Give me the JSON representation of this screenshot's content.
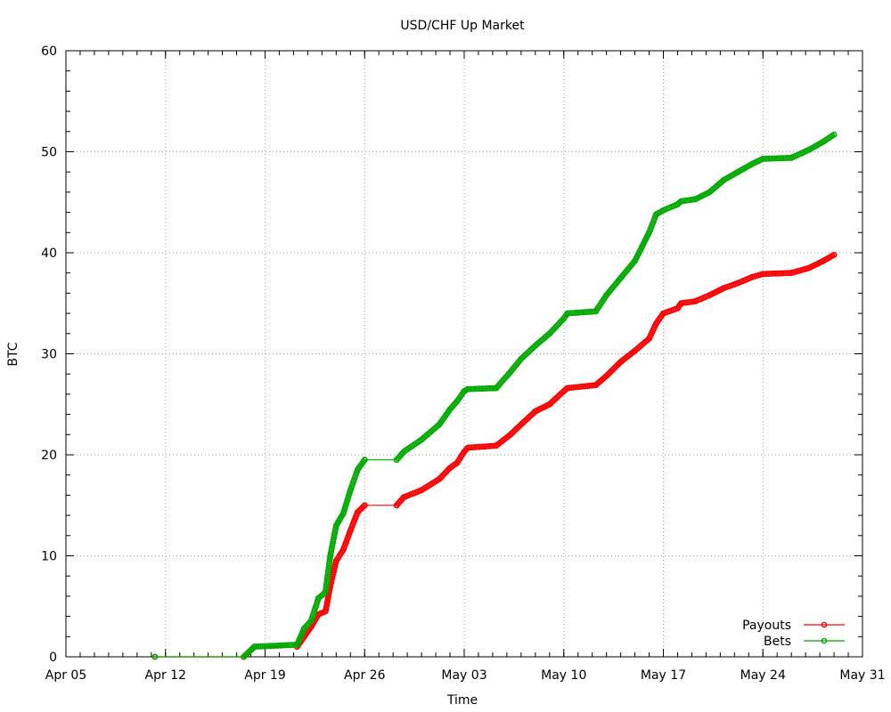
{
  "chart_data": {
    "type": "line",
    "title": "USD/CHF Up Market",
    "xlabel": "Time",
    "ylabel": "BTC",
    "x_axis": {
      "type": "date",
      "range": [
        "2014-04-05",
        "2014-05-31"
      ],
      "ticks": [
        {
          "date": "2014-04-05",
          "label": "Apr 05"
        },
        {
          "date": "2014-04-12",
          "label": "Apr 12"
        },
        {
          "date": "2014-04-19",
          "label": "Apr 19"
        },
        {
          "date": "2014-04-26",
          "label": "Apr 26"
        },
        {
          "date": "2014-05-03",
          "label": "May 03"
        },
        {
          "date": "2014-05-10",
          "label": "May 10"
        },
        {
          "date": "2014-05-17",
          "label": "May 17"
        },
        {
          "date": "2014-05-24",
          "label": "May 24"
        },
        {
          "date": "2014-05-31",
          "label": "May 31"
        }
      ]
    },
    "y_axis": {
      "range": [
        0,
        60
      ],
      "ticks": [
        0,
        10,
        20,
        30,
        40,
        50,
        60
      ]
    },
    "grid": true,
    "legend_position": "bottom-right",
    "series": [
      {
        "name": "Payouts",
        "color": "#ff0000",
        "points": [
          [
            "2014-04-11 06:00",
            0
          ],
          [
            "2014-04-17 12:00",
            0
          ],
          [
            "2014-04-18 06:00",
            1.0
          ],
          [
            "2014-04-21 06:00",
            1.0
          ],
          [
            "2014-04-21 18:00",
            2.0
          ],
          [
            "2014-04-22 06:00",
            3.0
          ],
          [
            "2014-04-22 18:00",
            4.2
          ],
          [
            "2014-04-23 06:00",
            4.5
          ],
          [
            "2014-04-23 14:00",
            7.0
          ],
          [
            "2014-04-24 00:00",
            9.5
          ],
          [
            "2014-04-24 12:00",
            10.6
          ],
          [
            "2014-04-25 00:00",
            12.5
          ],
          [
            "2014-04-25 12:00",
            14.3
          ],
          [
            "2014-04-26 00:00",
            15.0
          ],
          [
            "2014-04-28 06:00",
            15.0
          ],
          [
            "2014-04-28 18:00",
            15.8
          ],
          [
            "2014-04-30 00:00",
            16.5
          ],
          [
            "2014-05-01 06:00",
            17.6
          ],
          [
            "2014-05-02 00:00",
            18.7
          ],
          [
            "2014-05-02 12:00",
            19.2
          ],
          [
            "2014-05-03 00:00",
            20.3
          ],
          [
            "2014-05-03 06:00",
            20.7
          ],
          [
            "2014-05-05 06:00",
            20.9
          ],
          [
            "2014-05-06 06:00",
            22.0
          ],
          [
            "2014-05-07 00:00",
            23.0
          ],
          [
            "2014-05-08 00:00",
            24.3
          ],
          [
            "2014-05-09 00:00",
            25.0
          ],
          [
            "2014-05-10 00:00",
            26.3
          ],
          [
            "2014-05-10 06:00",
            26.6
          ],
          [
            "2014-05-12 06:00",
            26.9
          ],
          [
            "2014-05-13 00:00",
            27.8
          ],
          [
            "2014-05-14 00:00",
            29.2
          ],
          [
            "2014-05-15 00:00",
            30.3
          ],
          [
            "2014-05-16 00:00",
            31.5
          ],
          [
            "2014-05-16 12:00",
            33.0
          ],
          [
            "2014-05-17 00:00",
            34.0
          ],
          [
            "2014-05-18 00:00",
            34.5
          ],
          [
            "2014-05-18 06:00",
            35.0
          ],
          [
            "2014-05-19 06:00",
            35.2
          ],
          [
            "2014-05-20 06:00",
            35.8
          ],
          [
            "2014-05-21 06:00",
            36.5
          ],
          [
            "2014-05-22 06:00",
            37.0
          ],
          [
            "2014-05-23 06:00",
            37.6
          ],
          [
            "2014-05-24 00:00",
            37.9
          ],
          [
            "2014-05-26 00:00",
            38.0
          ],
          [
            "2014-05-27 06:00",
            38.5
          ],
          [
            "2014-05-28 06:00",
            39.2
          ],
          [
            "2014-05-29 00:00",
            39.8
          ]
        ]
      },
      {
        "name": "Bets",
        "color": "#00aa00",
        "points": [
          [
            "2014-04-11 06:00",
            0
          ],
          [
            "2014-04-17 12:00",
            0
          ],
          [
            "2014-04-18 06:00",
            1.0
          ],
          [
            "2014-04-21 06:00",
            1.2
          ],
          [
            "2014-04-21 18:00",
            2.8
          ],
          [
            "2014-04-22 06:00",
            3.6
          ],
          [
            "2014-04-22 18:00",
            5.8
          ],
          [
            "2014-04-23 06:00",
            6.4
          ],
          [
            "2014-04-23 14:00",
            10.0
          ],
          [
            "2014-04-24 00:00",
            13.0
          ],
          [
            "2014-04-24 12:00",
            14.2
          ],
          [
            "2014-04-25 00:00",
            16.5
          ],
          [
            "2014-04-25 12:00",
            18.5
          ],
          [
            "2014-04-26 00:00",
            19.5
          ],
          [
            "2014-04-28 06:00",
            19.5
          ],
          [
            "2014-04-28 18:00",
            20.3
          ],
          [
            "2014-04-30 00:00",
            21.5
          ],
          [
            "2014-05-01 06:00",
            23.0
          ],
          [
            "2014-05-02 00:00",
            24.5
          ],
          [
            "2014-05-02 12:00",
            25.3
          ],
          [
            "2014-05-03 00:00",
            26.3
          ],
          [
            "2014-05-03 06:00",
            26.5
          ],
          [
            "2014-05-05 06:00",
            26.6
          ],
          [
            "2014-05-06 06:00",
            28.2
          ],
          [
            "2014-05-07 00:00",
            29.5
          ],
          [
            "2014-05-08 00:00",
            30.8
          ],
          [
            "2014-05-09 00:00",
            32.0
          ],
          [
            "2014-05-10 00:00",
            33.5
          ],
          [
            "2014-05-10 06:00",
            34.0
          ],
          [
            "2014-05-12 06:00",
            34.2
          ],
          [
            "2014-05-13 00:00",
            35.8
          ],
          [
            "2014-05-14 00:00",
            37.5
          ],
          [
            "2014-05-15 00:00",
            39.2
          ],
          [
            "2014-05-16 00:00",
            42.0
          ],
          [
            "2014-05-16 12:00",
            43.8
          ],
          [
            "2014-05-17 00:00",
            44.2
          ],
          [
            "2014-05-18 00:00",
            44.8
          ],
          [
            "2014-05-18 06:00",
            45.1
          ],
          [
            "2014-05-19 06:00",
            45.3
          ],
          [
            "2014-05-20 06:00",
            46.0
          ],
          [
            "2014-05-21 06:00",
            47.2
          ],
          [
            "2014-05-22 06:00",
            48.0
          ],
          [
            "2014-05-23 06:00",
            48.8
          ],
          [
            "2014-05-24 00:00",
            49.3
          ],
          [
            "2014-05-26 00:00",
            49.4
          ],
          [
            "2014-05-27 06:00",
            50.2
          ],
          [
            "2014-05-28 06:00",
            51.0
          ],
          [
            "2014-05-29 00:00",
            51.7
          ]
        ]
      }
    ]
  }
}
